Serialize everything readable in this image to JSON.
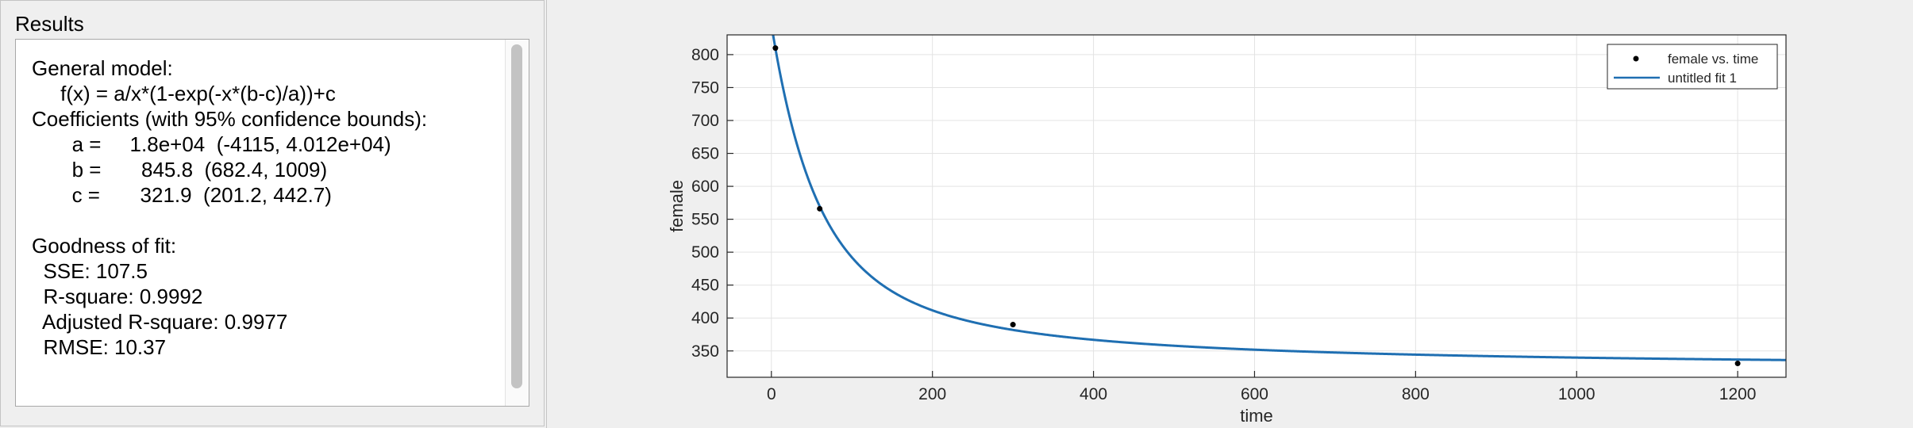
{
  "results": {
    "title": "Results",
    "lines": [
      "General model:",
      "     f(x) = a/x*(1-exp(-x*(b-c)/a))+c",
      "Coefficients (with 95% confidence bounds):",
      "       a =     1.8e+04  (-4115, 4.012e+04)",
      "       b =       845.8  (682.4, 1009)",
      "       c =       321.9  (201.2, 442.7)",
      "",
      "Goodness of fit:",
      "  SSE: 107.5",
      "  R-square: 0.9992",
      "  Adjusted R-square: 0.9977",
      "  RMSE: 10.37"
    ]
  },
  "chart_data": {
    "type": "scatter",
    "title": "",
    "xlabel": "time",
    "ylabel": "female",
    "xlim": [
      -55,
      1260
    ],
    "ylim": [
      310,
      830
    ],
    "xticks": [
      0,
      200,
      400,
      600,
      800,
      1000,
      1200
    ],
    "yticks": [
      350,
      400,
      450,
      500,
      550,
      600,
      650,
      700,
      750,
      800
    ],
    "grid": true,
    "legend_position": "top-right",
    "series": [
      {
        "name": "female vs. time",
        "kind": "points",
        "color": "#000000",
        "points": [
          [
            5,
            810
          ],
          [
            60,
            566
          ],
          [
            300,
            390
          ],
          [
            1200,
            331
          ]
        ]
      },
      {
        "name": "untitled fit 1",
        "kind": "fit-line",
        "color": "#1f6fb2",
        "model": "a/x*(1-exp(-x*(b-c)/a))+c",
        "coefficients": {
          "a": 18000,
          "b": 845.8,
          "c": 321.9
        }
      }
    ]
  }
}
